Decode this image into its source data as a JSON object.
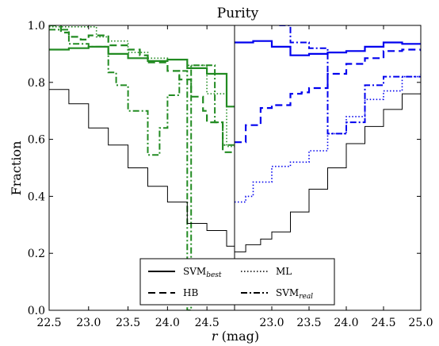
{
  "chart_data": {
    "type": "line",
    "title": "Purity",
    "xlabel_main": "r",
    "xlabel_unit": " (mag)",
    "ylabel": "Fraction",
    "ylim": [
      0.0,
      1.0
    ],
    "yticks": [
      "0.0",
      "0.2",
      "0.4",
      "0.6",
      "0.8",
      "1.0"
    ],
    "panels": [
      {
        "name": "left",
        "xlim": [
          22.5,
          24.85
        ],
        "xticks": [
          "22.5",
          "23.0",
          "23.5",
          "24.0",
          "24.5"
        ],
        "series": [
          {
            "name": "SVM",
            "sub": "best",
            "style": "solid",
            "color": "#228B22",
            "width": 2.2,
            "x": [
              22.5,
              22.75,
              23.0,
              23.25,
              23.5,
              23.75,
              24.0,
              24.25,
              24.5,
              24.75,
              24.85
            ],
            "y": [
              0.915,
              0.92,
              0.925,
              0.9,
              0.885,
              0.875,
              0.88,
              0.85,
              0.83,
              0.715,
              0.715
            ]
          },
          {
            "name": "HB",
            "sub": "",
            "style": "dashed",
            "color": "#228B22",
            "width": 2.2,
            "x": [
              22.5,
              22.65,
              22.75,
              22.9,
              23.0,
              23.25,
              23.5,
              23.65,
              23.75,
              24.0,
              24.15,
              24.3,
              24.45,
              24.5,
              24.7,
              24.85
            ],
            "y": [
              1.0,
              0.975,
              0.96,
              0.95,
              0.965,
              0.93,
              0.915,
              0.895,
              0.87,
              0.84,
              0.81,
              0.75,
              0.7,
              0.66,
              0.555,
              0.555
            ]
          },
          {
            "name": "ML",
            "sub": "",
            "style": "dotted",
            "color": "#228B22",
            "width": 1.6,
            "x": [
              22.5,
              22.75,
              23.0,
              23.1,
              23.25,
              23.5,
              23.75,
              24.0,
              24.25,
              24.5,
              24.75,
              24.85
            ],
            "y": [
              0.995,
              0.995,
              0.995,
              0.96,
              0.945,
              0.905,
              0.885,
              0.88,
              0.86,
              0.76,
              0.575,
              0.575
            ]
          },
          {
            "name": "SVM",
            "sub": "real",
            "style": "dashdot",
            "color": "#228B22",
            "width": 2.0,
            "x": [
              22.5,
              22.75,
              23.0,
              23.25,
              23.35,
              23.5,
              23.75,
              23.9,
              24.0,
              24.15,
              24.25,
              24.3,
              24.45,
              24.6,
              24.7,
              24.85
            ],
            "y": [
              0.985,
              0.935,
              0.925,
              0.835,
              0.79,
              0.7,
              0.545,
              0.64,
              0.755,
              0.84,
              0.0,
              0.86,
              0.86,
              0.66,
              0.58,
              0.58
            ]
          },
          {
            "name": "",
            "sub": "",
            "style": "solid",
            "color": "#000000",
            "width": 1.0,
            "x": [
              22.5,
              22.75,
              23.0,
              23.25,
              23.5,
              23.75,
              24.0,
              24.25,
              24.5,
              24.75,
              24.85
            ],
            "y": [
              0.775,
              0.725,
              0.64,
              0.58,
              0.5,
              0.435,
              0.38,
              0.305,
              0.28,
              0.225,
              0.225
            ]
          }
        ]
      },
      {
        "name": "right",
        "xlim": [
          22.5,
          25.0
        ],
        "xticks": [
          "23.0",
          "23.5",
          "24.0",
          "24.5",
          "25.0"
        ],
        "series": [
          {
            "name": "SVM",
            "sub": "best",
            "style": "solid",
            "color": "#0000ee",
            "width": 2.2,
            "x": [
              22.5,
              22.75,
              23.0,
              23.25,
              23.5,
              23.75,
              24.0,
              24.25,
              24.5,
              24.75,
              25.0
            ],
            "y": [
              0.94,
              0.945,
              0.925,
              0.895,
              0.9,
              0.905,
              0.91,
              0.925,
              0.94,
              0.935,
              0.935
            ]
          },
          {
            "name": "HB",
            "sub": "",
            "style": "dashed",
            "color": "#0000ee",
            "width": 2.2,
            "x": [
              22.5,
              22.65,
              22.85,
              23.0,
              23.25,
              23.4,
              23.5,
              23.75,
              24.0,
              24.25,
              24.5,
              24.75,
              25.0
            ],
            "y": [
              0.59,
              0.65,
              0.71,
              0.72,
              0.76,
              0.765,
              0.78,
              0.83,
              0.865,
              0.885,
              0.91,
              0.915,
              0.91
            ]
          },
          {
            "name": "ML",
            "sub": "",
            "style": "dotted",
            "color": "#0000ee",
            "width": 1.6,
            "x": [
              22.5,
              22.65,
              22.75,
              23.0,
              23.25,
              23.5,
              23.75,
              24.0,
              24.25,
              24.5,
              24.75,
              25.0
            ],
            "y": [
              0.38,
              0.4,
              0.45,
              0.505,
              0.52,
              0.56,
              0.62,
              0.68,
              0.74,
              0.77,
              0.82,
              0.83
            ]
          },
          {
            "name": "SVM",
            "sub": "real",
            "style": "dashdot",
            "color": "#0000ee",
            "width": 2.0,
            "x": [
              23.1,
              23.25,
              23.5,
              23.75,
              24.0,
              24.25,
              24.5,
              25.0
            ],
            "y": [
              1.0,
              0.94,
              0.92,
              0.62,
              0.66,
              0.79,
              0.82,
              0.82
            ]
          },
          {
            "name": "",
            "sub": "",
            "style": "solid",
            "color": "#000000",
            "width": 1.0,
            "x": [
              22.5,
              22.65,
              22.85,
              23.0,
              23.25,
              23.5,
              23.75,
              24.0,
              24.25,
              24.5,
              24.75,
              25.0
            ],
            "y": [
              0.205,
              0.23,
              0.25,
              0.275,
              0.345,
              0.425,
              0.5,
              0.585,
              0.645,
              0.705,
              0.76,
              0.78
            ]
          }
        ]
      }
    ],
    "legend": {
      "placement": "bottom-center",
      "entries": [
        {
          "label": "SVM",
          "sub": "best",
          "style": "solid"
        },
        {
          "label": "ML",
          "sub": "",
          "style": "dotted"
        },
        {
          "label": "HB",
          "sub": "",
          "style": "dashed"
        },
        {
          "label": "SVM",
          "sub": "real",
          "style": "dashdot"
        }
      ]
    }
  }
}
